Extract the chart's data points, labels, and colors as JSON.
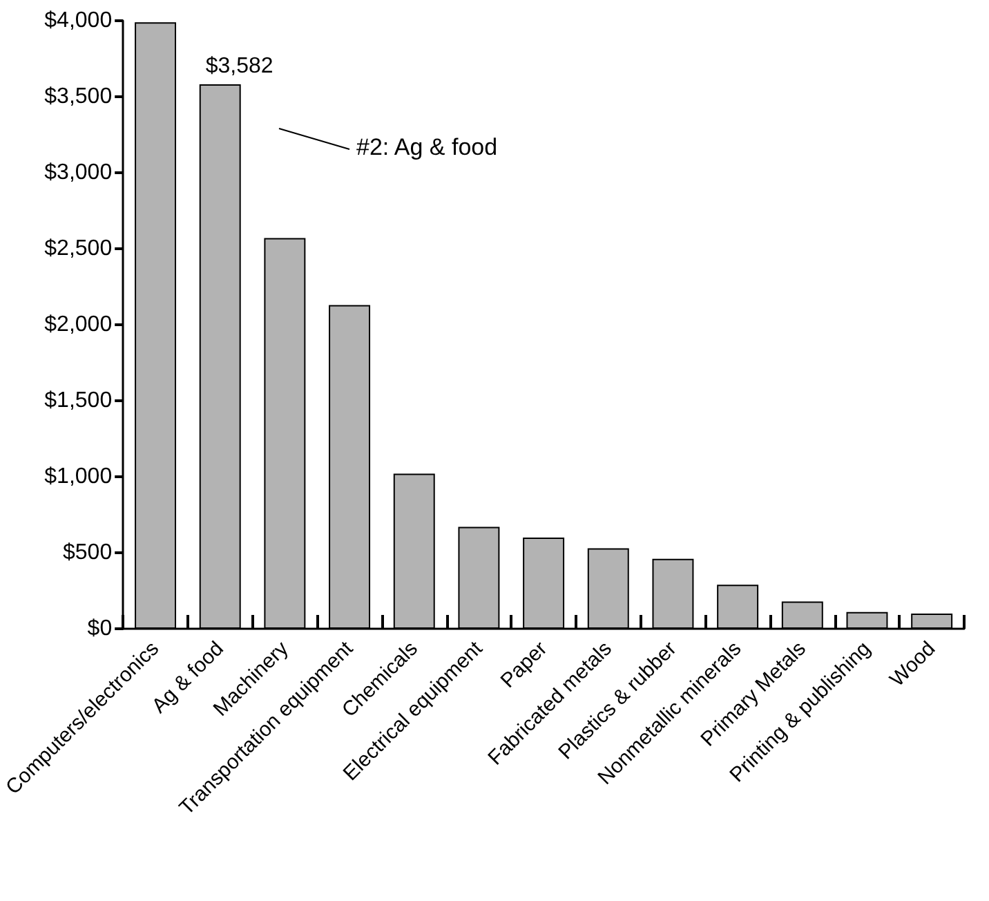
{
  "chart_data": {
    "type": "bar",
    "categories": [
      "Computers/electronics",
      "Ag & food",
      "Machinery",
      "Transportation equipment",
      "Chemicals",
      "Electrical equipment",
      "Paper",
      "Fabricated metals",
      "Plastics & rubber",
      "Nonmetallic minerals",
      "Primary Metals",
      "Printing & publishing",
      "Wood"
    ],
    "values": [
      3990,
      3582,
      2570,
      2130,
      1020,
      670,
      600,
      530,
      460,
      290,
      180,
      110,
      100
    ],
    "value_labels": [
      null,
      "$3,582",
      null,
      null,
      null,
      null,
      null,
      null,
      null,
      null,
      null,
      null,
      null
    ],
    "color": "#b3b3b3",
    "ylim": [
      0,
      4000
    ],
    "yticks": [
      {
        "value": 0,
        "label": "$0"
      },
      {
        "value": 500,
        "label": "$500"
      },
      {
        "value": 1000,
        "label": "$1,000"
      },
      {
        "value": 1500,
        "label": "$1,500"
      },
      {
        "value": 2000,
        "label": "$2,000"
      },
      {
        "value": 2500,
        "label": "$2,500"
      },
      {
        "value": 3000,
        "label": "$3,000"
      },
      {
        "value": 3500,
        "label": "$3,500"
      },
      {
        "value": 4000,
        "label": "$4,000"
      }
    ],
    "annotations": [
      "#2: Ag & food"
    ],
    "grid": false
  }
}
